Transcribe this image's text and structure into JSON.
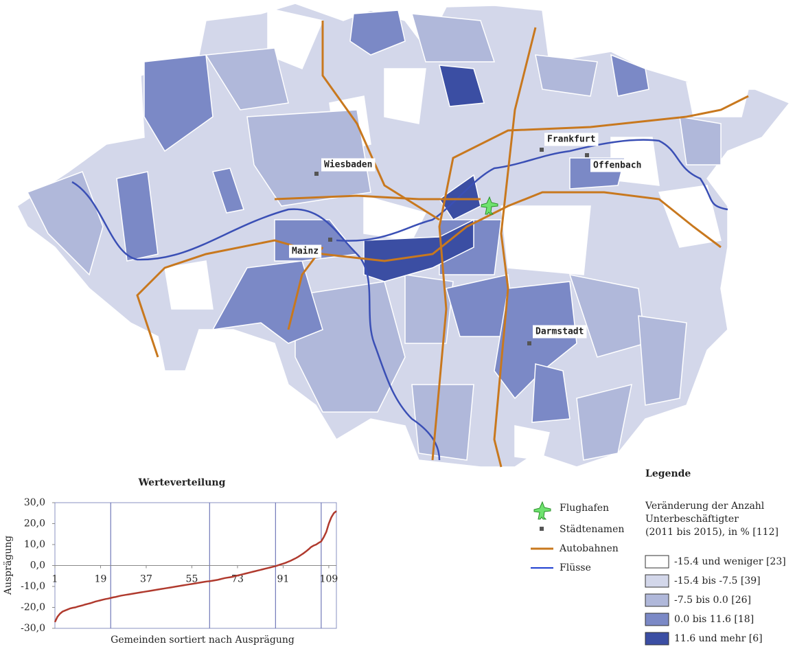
{
  "map": {
    "cities": [
      "Wiesbaden",
      "Mainz",
      "Frankfurt",
      "Offenbach",
      "Darmstadt"
    ]
  },
  "legend": {
    "title": "Legende",
    "symbols": [
      "Flughafen",
      "Städtenamen",
      "Autobahnen",
      "Flüsse"
    ],
    "description": [
      "Veränderung der Anzahl",
      "Unterbeschäftigter",
      "(2011 bis 2015), in % [112]"
    ],
    "classes": [
      {
        "label": "-15.4 und weniger [23]",
        "color": "#ffffff"
      },
      {
        "label": "-15.4 bis -7.5 [39]",
        "color": "#d3d7ea"
      },
      {
        "label": "-7.5 bis 0.0 [26]",
        "color": "#b0b8da"
      },
      {
        "label": "0.0 bis 11.6 [18]",
        "color": "#7b89c6"
      },
      {
        "label": "11.6 und mehr [6]",
        "color": "#3b4ea3"
      }
    ]
  },
  "chart_data": {
    "type": "line",
    "title": "Werteverteilung",
    "x_label": "Gemeinden sortiert nach Ausprägung",
    "y_label": "Ausprägung",
    "x": [
      1,
      2,
      3,
      4,
      5,
      6,
      7,
      8,
      9,
      10,
      11,
      12,
      13,
      14,
      15,
      16,
      17,
      18,
      19,
      20,
      21,
      22,
      23,
      24,
      25,
      26,
      27,
      28,
      29,
      30,
      31,
      32,
      33,
      34,
      35,
      36,
      37,
      38,
      39,
      40,
      41,
      42,
      43,
      44,
      45,
      46,
      47,
      48,
      49,
      50,
      51,
      52,
      53,
      54,
      55,
      56,
      57,
      58,
      59,
      60,
      61,
      62,
      63,
      64,
      65,
      66,
      67,
      68,
      69,
      70,
      71,
      72,
      73,
      74,
      75,
      76,
      77,
      78,
      79,
      80,
      81,
      82,
      83,
      84,
      85,
      86,
      87,
      88,
      89,
      90,
      91,
      92,
      93,
      94,
      95,
      96,
      97,
      98,
      99,
      100,
      101,
      102,
      103,
      104,
      105,
      106,
      107,
      108,
      109,
      110,
      111,
      112
    ],
    "series": [
      {
        "color": "#b03a2e",
        "values": [
          -27,
          -24.5,
          -23,
          -22,
          -21.5,
          -21,
          -20.5,
          -20.2,
          -20,
          -19.6,
          -19.3,
          -19,
          -18.6,
          -18.3,
          -18,
          -17.6,
          -17.2,
          -16.9,
          -16.6,
          -16.3,
          -16,
          -15.8,
          -15.5,
          -15.2,
          -15,
          -14.7,
          -14.4,
          -14.2,
          -14,
          -13.8,
          -13.6,
          -13.4,
          -13.2,
          -13,
          -12.8,
          -12.6,
          -12.4,
          -12.2,
          -12,
          -11.8,
          -11.6,
          -11.4,
          -11.2,
          -11,
          -10.8,
          -10.6,
          -10.4,
          -10.2,
          -10,
          -9.8,
          -9.6,
          -9.4,
          -9.2,
          -9,
          -8.8,
          -8.6,
          -8.4,
          -8.2,
          -8,
          -7.8,
          -7.6,
          -7.5,
          -7.3,
          -7.1,
          -6.9,
          -6.6,
          -6.3,
          -6,
          -5.8,
          -5.6,
          -5.4,
          -5.1,
          -4.8,
          -4.5,
          -4.2,
          -3.9,
          -3.6,
          -3.3,
          -3,
          -2.7,
          -2.4,
          -2.1,
          -1.8,
          -1.5,
          -1.2,
          -0.9,
          -0.6,
          -0.3,
          0.1,
          0.5,
          0.9,
          1.3,
          1.8,
          2.3,
          2.9,
          3.5,
          4.2,
          5,
          5.8,
          6.7,
          7.7,
          8.8,
          9.5,
          10,
          10.8,
          11.5,
          13.5,
          16,
          20,
          23,
          25,
          26
        ]
      }
    ],
    "xlim": [
      1,
      112
    ],
    "ylim": [
      -30,
      30
    ],
    "xticks": [
      1,
      19,
      37,
      55,
      73,
      91,
      109
    ],
    "yticks": [
      {
        "value": 30,
        "label": "30,0"
      },
      {
        "value": 20,
        "label": "20,0"
      },
      {
        "value": 10,
        "label": "10,0"
      },
      {
        "value": 0,
        "label": "0,0"
      },
      {
        "value": -10,
        "label": "-10,0"
      },
      {
        "value": -20,
        "label": "-20,0"
      },
      {
        "value": -30,
        "label": "-30,0"
      }
    ],
    "class_breaks": [
      23,
      62,
      88,
      106
    ]
  }
}
